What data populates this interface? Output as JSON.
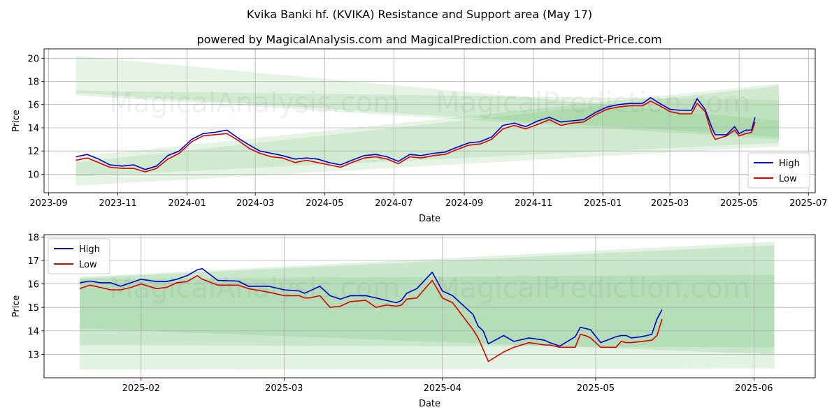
{
  "title": "Kvika Banki hf. (KVIKA) Resistance and Support area (May 17)",
  "subtitle": "powered by MagicalAnalysis.com and MagicalPrediction.com and Predict-Price.com",
  "watermark": "MagicalAnalysis.com    MagicalPrediction.com",
  "colors": {
    "high": "#0000cc",
    "low": "#dd0000",
    "band": "#4caf50",
    "grid": "#b0b0b0"
  },
  "chart_data": [
    {
      "type": "line",
      "xlabel": "Date",
      "ylabel": "Price",
      "xlim": [
        "2023-08-28",
        "2025-07-07"
      ],
      "ylim": [
        8.4,
        20.8
      ],
      "grid": true,
      "legend": "lower-right",
      "x_ticks": [
        {
          "date": "2023-09-01",
          "label": "2023-09"
        },
        {
          "date": "2023-11-01",
          "label": "2023-11"
        },
        {
          "date": "2024-01-01",
          "label": "2024-01"
        },
        {
          "date": "2024-03-01",
          "label": "2024-03"
        },
        {
          "date": "2024-05-01",
          "label": "2024-05"
        },
        {
          "date": "2024-07-01",
          "label": "2024-07"
        },
        {
          "date": "2024-09-01",
          "label": "2024-09"
        },
        {
          "date": "2024-11-01",
          "label": "2024-11"
        },
        {
          "date": "2025-01-01",
          "label": "2025-01"
        },
        {
          "date": "2025-03-01",
          "label": "2025-03"
        },
        {
          "date": "2025-05-01",
          "label": "2025-05"
        },
        {
          "date": "2025-07-01",
          "label": "2025-07"
        }
      ],
      "y_ticks": [
        10,
        12,
        14,
        16,
        18,
        20
      ],
      "bands": [
        {
          "x": [
            "2023-09-25",
            "2025-06-05"
          ],
          "upper": [
            20.2,
            14.6
          ],
          "lower": [
            17.0,
            13.2
          ],
          "opacity": 0.14
        },
        {
          "x": [
            "2023-09-25",
            "2025-06-05"
          ],
          "upper": [
            11.5,
            17.8
          ],
          "lower": [
            9.0,
            12.4
          ],
          "opacity": 0.14
        },
        {
          "x": [
            "2023-09-25",
            "2025-06-05"
          ],
          "upper": [
            11.0,
            17.6
          ],
          "lower": [
            9.8,
            12.7
          ],
          "opacity": 0.14
        },
        {
          "x": [
            "2023-09-25",
            "2025-06-05"
          ],
          "upper": [
            17.2,
            16.4
          ],
          "lower": [
            16.8,
            13.0
          ],
          "opacity": 0.14
        }
      ],
      "series": [
        {
          "name": "High",
          "x": [
            "2023-09-25",
            "2023-10-05",
            "2023-10-15",
            "2023-10-25",
            "2023-11-05",
            "2023-11-15",
            "2023-11-25",
            "2023-12-05",
            "2023-12-15",
            "2023-12-25",
            "2024-01-05",
            "2024-01-15",
            "2024-01-25",
            "2024-02-05",
            "2024-02-15",
            "2024-02-25",
            "2024-03-05",
            "2024-03-15",
            "2024-03-25",
            "2024-04-05",
            "2024-04-15",
            "2024-04-25",
            "2024-05-05",
            "2024-05-15",
            "2024-05-25",
            "2024-06-05",
            "2024-06-15",
            "2024-06-25",
            "2024-07-05",
            "2024-07-15",
            "2024-07-25",
            "2024-08-05",
            "2024-08-15",
            "2024-08-25",
            "2024-09-05",
            "2024-09-15",
            "2024-09-25",
            "2024-10-05",
            "2024-10-15",
            "2024-10-25",
            "2024-11-05",
            "2024-11-15",
            "2024-11-25",
            "2024-12-05",
            "2024-12-15",
            "2024-12-25",
            "2025-01-05",
            "2025-01-15",
            "2025-01-25",
            "2025-02-05",
            "2025-02-12",
            "2025-02-20",
            "2025-03-01",
            "2025-03-10",
            "2025-03-20",
            "2025-03-25",
            "2025-04-01",
            "2025-04-07",
            "2025-04-10",
            "2025-04-20",
            "2025-04-27",
            "2025-05-01",
            "2025-05-07",
            "2025-05-12",
            "2025-05-15"
          ],
          "y": [
            11.5,
            11.7,
            11.3,
            10.8,
            10.7,
            10.8,
            10.4,
            10.7,
            11.6,
            12.0,
            13.0,
            13.5,
            13.6,
            13.8,
            13.1,
            12.5,
            12.0,
            11.8,
            11.6,
            11.3,
            11.4,
            11.3,
            11.0,
            10.8,
            11.2,
            11.6,
            11.7,
            11.5,
            11.1,
            11.7,
            11.6,
            11.8,
            11.9,
            12.3,
            12.7,
            12.8,
            13.2,
            14.2,
            14.4,
            14.1,
            14.6,
            14.9,
            14.5,
            14.6,
            14.7,
            15.3,
            15.8,
            16.0,
            16.1,
            16.1,
            16.6,
            16.1,
            15.6,
            15.5,
            15.5,
            16.5,
            15.6,
            14.0,
            13.4,
            13.4,
            14.1,
            13.5,
            13.8,
            13.8,
            14.9
          ]
        },
        {
          "name": "Low",
          "x": [
            "2023-09-25",
            "2023-10-05",
            "2023-10-15",
            "2023-10-25",
            "2023-11-05",
            "2023-11-15",
            "2023-11-25",
            "2023-12-05",
            "2023-12-15",
            "2023-12-25",
            "2024-01-05",
            "2024-01-15",
            "2024-01-25",
            "2024-02-05",
            "2024-02-15",
            "2024-02-25",
            "2024-03-05",
            "2024-03-15",
            "2024-03-25",
            "2024-04-05",
            "2024-04-15",
            "2024-04-25",
            "2024-05-05",
            "2024-05-15",
            "2024-05-25",
            "2024-06-05",
            "2024-06-15",
            "2024-06-25",
            "2024-07-05",
            "2024-07-15",
            "2024-07-25",
            "2024-08-05",
            "2024-08-15",
            "2024-08-25",
            "2024-09-05",
            "2024-09-15",
            "2024-09-25",
            "2024-10-05",
            "2024-10-15",
            "2024-10-25",
            "2024-11-05",
            "2024-11-15",
            "2024-11-25",
            "2024-12-05",
            "2024-12-15",
            "2024-12-25",
            "2025-01-05",
            "2025-01-15",
            "2025-01-25",
            "2025-02-05",
            "2025-02-12",
            "2025-02-20",
            "2025-03-01",
            "2025-03-10",
            "2025-03-20",
            "2025-03-25",
            "2025-04-01",
            "2025-04-07",
            "2025-04-10",
            "2025-04-20",
            "2025-04-27",
            "2025-05-01",
            "2025-05-07",
            "2025-05-12",
            "2025-05-15"
          ],
          "y": [
            11.2,
            11.4,
            11.0,
            10.6,
            10.5,
            10.5,
            10.2,
            10.5,
            11.3,
            11.8,
            12.8,
            13.3,
            13.4,
            13.5,
            12.9,
            12.2,
            11.8,
            11.5,
            11.4,
            11.0,
            11.2,
            11.0,
            10.8,
            10.6,
            11.0,
            11.4,
            11.5,
            11.3,
            10.9,
            11.5,
            11.4,
            11.6,
            11.7,
            12.1,
            12.5,
            12.6,
            13.0,
            13.9,
            14.2,
            13.9,
            14.3,
            14.7,
            14.2,
            14.4,
            14.5,
            15.1,
            15.6,
            15.8,
            15.9,
            15.9,
            16.3,
            15.9,
            15.4,
            15.2,
            15.2,
            16.1,
            15.4,
            13.5,
            13.0,
            13.3,
            13.8,
            13.3,
            13.5,
            13.6,
            14.5
          ]
        }
      ]
    },
    {
      "type": "line",
      "xlabel": "Date",
      "ylabel": "Price",
      "xlim": [
        "2025-01-13",
        "2025-06-13"
      ],
      "ylim": [
        12.0,
        18.1
      ],
      "grid": true,
      "legend": "upper-left",
      "x_ticks": [
        {
          "date": "2025-02-01",
          "label": "2025-02"
        },
        {
          "date": "2025-03-01",
          "label": "2025-03"
        },
        {
          "date": "2025-04-01",
          "label": "2025-04"
        },
        {
          "date": "2025-05-01",
          "label": "2025-05"
        },
        {
          "date": "2025-06-01",
          "label": "2025-06"
        }
      ],
      "y_ticks": [
        13,
        14,
        15,
        16,
        17,
        18
      ],
      "bands": [
        {
          "x": [
            "2025-01-20",
            "2025-06-05"
          ],
          "upper": [
            16.3,
            17.8
          ],
          "lower": [
            12.35,
            12.4
          ],
          "opacity": 0.16
        },
        {
          "x": [
            "2025-01-20",
            "2025-06-05"
          ],
          "upper": [
            16.25,
            17.65
          ],
          "lower": [
            13.4,
            13.3
          ],
          "opacity": 0.16
        },
        {
          "x": [
            "2025-01-20",
            "2025-06-05"
          ],
          "upper": [
            16.2,
            16.4
          ],
          "lower": [
            14.1,
            13.0
          ],
          "opacity": 0.16
        }
      ],
      "series": [
        {
          "name": "High",
          "x": [
            "2025-01-20",
            "2025-01-22",
            "2025-01-24",
            "2025-01-26",
            "2025-01-28",
            "2025-01-30",
            "2025-02-01",
            "2025-02-04",
            "2025-02-06",
            "2025-02-08",
            "2025-02-10",
            "2025-02-12",
            "2025-02-13",
            "2025-02-16",
            "2025-02-20",
            "2025-02-22",
            "2025-02-26",
            "2025-03-01",
            "2025-03-04",
            "2025-03-05",
            "2025-03-06",
            "2025-03-08",
            "2025-03-10",
            "2025-03-12",
            "2025-03-14",
            "2025-03-17",
            "2025-03-19",
            "2025-03-21",
            "2025-03-23",
            "2025-03-24",
            "2025-03-25",
            "2025-03-27",
            "2025-03-30",
            "2025-04-01",
            "2025-04-02",
            "2025-04-03",
            "2025-04-07",
            "2025-04-08",
            "2025-04-09",
            "2025-04-10",
            "2025-04-13",
            "2025-04-15",
            "2025-04-18",
            "2025-04-21",
            "2025-04-22",
            "2025-04-24",
            "2025-04-27",
            "2025-04-28",
            "2025-04-29",
            "2025-04-30",
            "2025-05-02",
            "2025-05-05",
            "2025-05-06",
            "2025-05-07",
            "2025-05-08",
            "2025-05-10",
            "2025-05-12",
            "2025-05-13",
            "2025-05-14"
          ],
          "y": [
            16.05,
            16.12,
            16.05,
            16.05,
            15.9,
            16.05,
            16.2,
            16.1,
            16.1,
            16.2,
            16.35,
            16.6,
            16.65,
            16.15,
            16.12,
            15.9,
            15.9,
            15.75,
            15.7,
            15.6,
            15.7,
            15.9,
            15.5,
            15.35,
            15.5,
            15.5,
            15.4,
            15.3,
            15.2,
            15.3,
            15.6,
            15.8,
            16.5,
            15.7,
            15.6,
            15.5,
            14.7,
            14.2,
            14.0,
            13.45,
            13.8,
            13.55,
            13.7,
            13.6,
            13.5,
            13.35,
            13.75,
            14.15,
            14.1,
            14.05,
            13.5,
            13.75,
            13.8,
            13.8,
            13.7,
            13.75,
            13.85,
            14.5,
            14.9
          ]
        },
        {
          "name": "Low",
          "x": [
            "2025-01-20",
            "2025-01-22",
            "2025-01-24",
            "2025-01-26",
            "2025-01-28",
            "2025-01-30",
            "2025-02-01",
            "2025-02-04",
            "2025-02-06",
            "2025-02-08",
            "2025-02-10",
            "2025-02-12",
            "2025-02-13",
            "2025-02-16",
            "2025-02-20",
            "2025-02-22",
            "2025-02-26",
            "2025-03-01",
            "2025-03-04",
            "2025-03-05",
            "2025-03-06",
            "2025-03-08",
            "2025-03-10",
            "2025-03-12",
            "2025-03-14",
            "2025-03-17",
            "2025-03-19",
            "2025-03-21",
            "2025-03-23",
            "2025-03-24",
            "2025-03-25",
            "2025-03-27",
            "2025-03-30",
            "2025-04-01",
            "2025-04-02",
            "2025-04-03",
            "2025-04-07",
            "2025-04-08",
            "2025-04-09",
            "2025-04-10",
            "2025-04-13",
            "2025-04-15",
            "2025-04-18",
            "2025-04-21",
            "2025-04-22",
            "2025-04-24",
            "2025-04-27",
            "2025-04-28",
            "2025-04-29",
            "2025-04-30",
            "2025-05-02",
            "2025-05-05",
            "2025-05-06",
            "2025-05-07",
            "2025-05-08",
            "2025-05-10",
            "2025-05-12",
            "2025-05-13",
            "2025-05-14"
          ],
          "y": [
            15.8,
            15.95,
            15.85,
            15.75,
            15.75,
            15.85,
            16.0,
            15.8,
            15.85,
            16.05,
            16.1,
            16.35,
            16.2,
            15.95,
            15.95,
            15.8,
            15.65,
            15.5,
            15.5,
            15.4,
            15.4,
            15.5,
            15.0,
            15.05,
            15.25,
            15.3,
            15.0,
            15.1,
            15.05,
            15.1,
            15.35,
            15.4,
            16.15,
            15.4,
            15.3,
            15.2,
            14.05,
            13.7,
            13.2,
            12.7,
            13.1,
            13.3,
            13.5,
            13.4,
            13.4,
            13.3,
            13.3,
            13.85,
            13.8,
            13.7,
            13.3,
            13.3,
            13.55,
            13.5,
            13.5,
            13.55,
            13.6,
            13.8,
            14.5
          ]
        }
      ]
    }
  ]
}
